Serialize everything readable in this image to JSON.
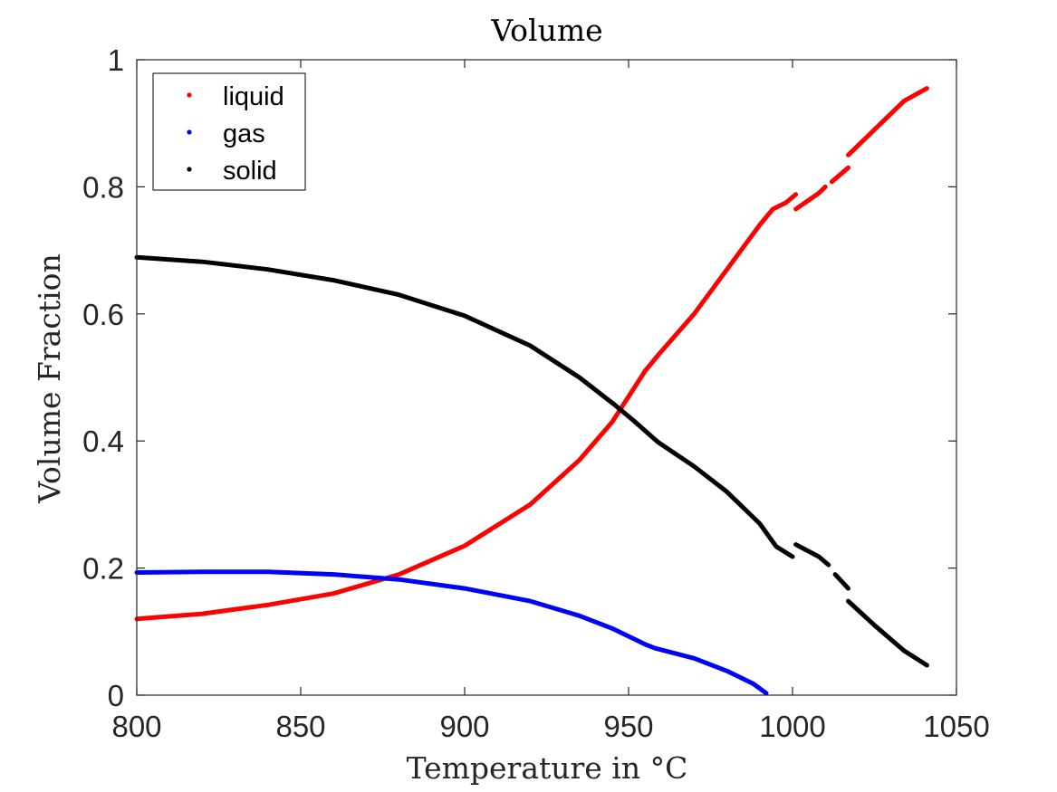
{
  "chart_data": {
    "type": "line",
    "title": "Volume",
    "xlabel": "Temperature in °C",
    "ylabel": "Volume Fraction",
    "xlim": [
      800,
      1050
    ],
    "ylim": [
      0,
      1
    ],
    "xticks": [
      800,
      850,
      900,
      950,
      1000,
      1050
    ],
    "yticks": [
      0,
      0.2,
      0.4,
      0.6,
      0.8,
      1
    ],
    "xtick_labels": [
      "800",
      "850",
      "900",
      "950",
      "1000",
      "1050"
    ],
    "ytick_labels": [
      "0",
      "0.2",
      "0.4",
      "0.6",
      "0.8",
      "1"
    ],
    "grid": false,
    "legend_position": "top-left",
    "series": [
      {
        "name": "liquid",
        "color": "#ff0000",
        "segments": [
          [
            [
              800,
              0.12
            ],
            [
              820,
              0.128
            ],
            [
              840,
              0.142
            ],
            [
              860,
              0.16
            ],
            [
              880,
              0.19
            ],
            [
              900,
              0.235
            ],
            [
              920,
              0.3
            ],
            [
              935,
              0.37
            ],
            [
              945,
              0.43
            ],
            [
              950,
              0.47
            ],
            [
              955,
              0.51
            ],
            [
              959,
              0.535
            ],
            [
              970,
              0.6
            ],
            [
              980,
              0.67
            ],
            [
              990,
              0.74
            ],
            [
              994,
              0.765
            ],
            [
              998,
              0.775
            ]
          ],
          [
            [
              998,
              0.775
            ],
            [
              1001,
              0.788
            ]
          ],
          [
            [
              1001,
              0.765
            ],
            [
              1008,
              0.79
            ],
            [
              1010,
              0.8
            ]
          ],
          [
            [
              1012,
              0.808
            ],
            [
              1017,
              0.83
            ]
          ],
          [
            [
              1017,
              0.85
            ],
            [
              1025,
              0.89
            ],
            [
              1034,
              0.935
            ],
            [
              1041,
              0.955
            ]
          ]
        ]
      },
      {
        "name": "gas",
        "color": "#0000ff",
        "segments": [
          [
            [
              800,
              0.193
            ],
            [
              820,
              0.194
            ],
            [
              840,
              0.194
            ],
            [
              860,
              0.19
            ],
            [
              880,
              0.182
            ],
            [
              900,
              0.168
            ],
            [
              920,
              0.148
            ],
            [
              935,
              0.125
            ],
            [
              945,
              0.105
            ],
            [
              955,
              0.08
            ],
            [
              958,
              0.074
            ],
            [
              970,
              0.058
            ],
            [
              980,
              0.038
            ],
            [
              988,
              0.018
            ],
            [
              992,
              0.003
            ]
          ]
        ]
      },
      {
        "name": "solid",
        "color": "#000000",
        "segments": [
          [
            [
              800,
              0.689
            ],
            [
              820,
              0.682
            ],
            [
              840,
              0.67
            ],
            [
              860,
              0.653
            ],
            [
              880,
              0.63
            ],
            [
              900,
              0.597
            ],
            [
              920,
              0.55
            ],
            [
              935,
              0.5
            ],
            [
              945,
              0.46
            ],
            [
              952,
              0.43
            ],
            [
              959,
              0.398
            ],
            [
              970,
              0.36
            ],
            [
              980,
              0.32
            ],
            [
              990,
              0.27
            ],
            [
              995,
              0.234
            ],
            [
              1000,
              0.218
            ]
          ],
          [
            [
              1001,
              0.237
            ],
            [
              1008,
              0.218
            ],
            [
              1011,
              0.205
            ]
          ],
          [
            [
              1013,
              0.19
            ],
            [
              1017,
              0.168
            ]
          ],
          [
            [
              1017,
              0.148
            ],
            [
              1025,
              0.11
            ],
            [
              1034,
              0.07
            ],
            [
              1041,
              0.047
            ]
          ]
        ]
      }
    ]
  }
}
